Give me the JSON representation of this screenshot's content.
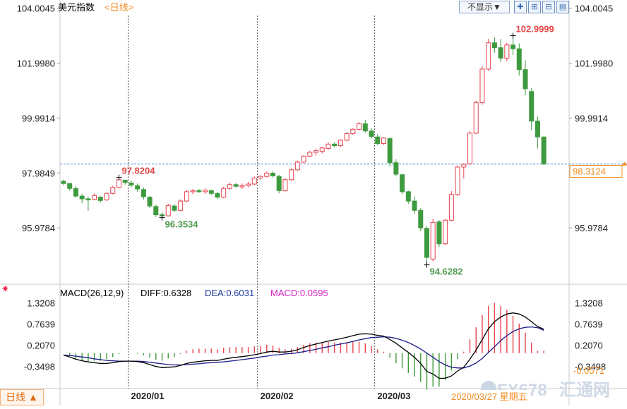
{
  "header": {
    "title": "美元指数",
    "period_link": "<日线>",
    "dropdown_label": "不显示▼",
    "tool_icons": [
      "crosshair-icon",
      "zoom-in-icon",
      "zoom-out-icon",
      "layout-icon"
    ]
  },
  "footer": {
    "period_button": "日线 ▲",
    "date_info": "2020/03/27 星期五",
    "watermark_brand": "FX678",
    "watermark_cn": "汇通网"
  },
  "colors": {
    "up": "#e8424d",
    "down": "#3e9a3e",
    "diff_line": "#000000",
    "dea_line": "#1c1c8c",
    "reference_line": "#3a7fd6",
    "current_label": "#f08c1e"
  },
  "chart_data": {
    "type": "candlestick",
    "symbol": "美元指数",
    "period": "日线",
    "price_axis": {
      "ylim": [
        94.0,
        104.2
      ],
      "ticks": [
        104.0045,
        101.998,
        99.9914,
        97.9849,
        95.9784
      ],
      "tick_labels": [
        "104.0045",
        "101.9980",
        "99.9914",
        "97.9849",
        "95.9784"
      ]
    },
    "x_labels": [
      {
        "index": 11,
        "label": "2020/01"
      },
      {
        "index": 32,
        "label": "2020/02"
      },
      {
        "index": 51,
        "label": "2020/03"
      }
    ],
    "annotations": {
      "high": {
        "index": 73,
        "value": 102.9999,
        "label": "102.9999"
      },
      "low": {
        "index": 59,
        "value": 94.6282,
        "label": "94.6282"
      },
      "local_high": {
        "index": 9,
        "value": 97.8204,
        "label": "97.8204"
      },
      "local_low": {
        "index": 16,
        "value": 96.3534,
        "label": "96.3534"
      },
      "current_price": {
        "value": 98.3124,
        "label": "98.3124"
      }
    },
    "candles": [
      [
        97.68,
        97.74,
        97.54,
        97.6
      ],
      [
        97.6,
        97.62,
        97.34,
        97.42
      ],
      [
        97.42,
        97.5,
        97.08,
        97.14
      ],
      [
        97.14,
        97.22,
        96.88,
        97.04
      ],
      [
        97.04,
        97.12,
        96.6,
        97.0
      ],
      [
        97.02,
        97.24,
        96.98,
        97.16
      ],
      [
        97.1,
        97.14,
        96.9,
        96.98
      ],
      [
        97.0,
        97.28,
        96.96,
        97.24
      ],
      [
        97.24,
        97.52,
        97.2,
        97.46
      ],
      [
        97.46,
        97.82,
        97.42,
        97.74
      ],
      [
        97.72,
        97.74,
        97.56,
        97.64
      ],
      [
        97.62,
        97.7,
        97.46,
        97.54
      ],
      [
        97.52,
        97.6,
        97.3,
        97.4
      ],
      [
        97.38,
        97.46,
        97.02,
        97.12
      ],
      [
        97.1,
        97.14,
        96.7,
        96.78
      ],
      [
        96.76,
        96.82,
        96.38,
        96.46
      ],
      [
        96.46,
        96.56,
        96.35,
        96.42
      ],
      [
        96.42,
        96.86,
        96.4,
        96.8
      ],
      [
        96.78,
        96.84,
        96.56,
        96.62
      ],
      [
        96.62,
        97.02,
        96.58,
        96.96
      ],
      [
        96.96,
        97.36,
        96.92,
        97.3
      ],
      [
        97.3,
        97.4,
        97.22,
        97.34
      ],
      [
        97.34,
        97.4,
        97.26,
        97.3
      ],
      [
        97.3,
        97.42,
        97.22,
        97.36
      ],
      [
        97.34,
        97.38,
        97.18,
        97.24
      ],
      [
        97.24,
        97.28,
        97.04,
        97.1
      ],
      [
        97.1,
        97.48,
        97.06,
        97.42
      ],
      [
        97.42,
        97.64,
        97.38,
        97.56
      ],
      [
        97.56,
        97.62,
        97.44,
        97.5
      ],
      [
        97.48,
        97.6,
        97.4,
        97.52
      ],
      [
        97.52,
        97.66,
        97.46,
        97.58
      ],
      [
        97.58,
        97.86,
        97.54,
        97.8
      ],
      [
        97.8,
        97.9,
        97.72,
        97.86
      ],
      [
        97.86,
        98.04,
        97.82,
        97.98
      ],
      [
        97.98,
        98.04,
        97.82,
        97.88
      ],
      [
        97.86,
        97.92,
        97.24,
        97.34
      ],
      [
        97.34,
        97.8,
        97.3,
        97.74
      ],
      [
        97.74,
        98.16,
        97.7,
        98.1
      ],
      [
        98.1,
        98.44,
        98.06,
        98.38
      ],
      [
        98.38,
        98.64,
        98.34,
        98.6
      ],
      [
        98.6,
        98.8,
        98.56,
        98.74
      ],
      [
        98.74,
        98.88,
        98.62,
        98.8
      ],
      [
        98.78,
        98.94,
        98.7,
        98.9
      ],
      [
        98.88,
        99.1,
        98.84,
        99.04
      ],
      [
        99.04,
        99.1,
        98.92,
        98.98
      ],
      [
        98.98,
        99.22,
        98.94,
        99.18
      ],
      [
        99.18,
        99.48,
        99.14,
        99.42
      ],
      [
        99.42,
        99.62,
        99.38,
        99.58
      ],
      [
        99.58,
        99.84,
        99.54,
        99.78
      ],
      [
        99.78,
        99.92,
        99.46,
        99.52
      ],
      [
        99.52,
        99.62,
        99.24,
        99.32
      ],
      [
        99.3,
        99.4,
        99.0,
        99.06
      ],
      [
        99.06,
        99.3,
        99.02,
        99.26
      ],
      [
        99.24,
        99.28,
        98.22,
        98.36
      ],
      [
        98.36,
        98.48,
        97.86,
        97.94
      ],
      [
        97.92,
        97.96,
        97.22,
        97.3
      ],
      [
        97.3,
        97.34,
        96.86,
        96.96
      ],
      [
        96.96,
        97.12,
        96.48,
        96.62
      ],
      [
        96.62,
        96.7,
        95.86,
        95.98
      ],
      [
        95.96,
        96.04,
        94.7,
        94.9
      ],
      [
        94.84,
        96.3,
        94.76,
        96.18
      ],
      [
        96.2,
        96.26,
        95.28,
        95.4
      ],
      [
        95.4,
        96.3,
        95.34,
        96.26
      ],
      [
        96.26,
        97.32,
        96.22,
        97.2
      ],
      [
        97.2,
        98.26,
        97.14,
        98.2
      ],
      [
        98.2,
        98.34,
        97.78,
        98.3
      ],
      [
        98.32,
        99.52,
        98.28,
        99.44
      ],
      [
        99.44,
        100.62,
        99.4,
        100.56
      ],
      [
        100.56,
        101.88,
        100.48,
        101.78
      ],
      [
        101.78,
        102.88,
        101.72,
        102.74
      ],
      [
        102.74,
        102.94,
        102.38,
        102.56
      ],
      [
        102.56,
        102.88,
        102.04,
        102.18
      ],
      [
        102.18,
        102.74,
        102.06,
        102.66
      ],
      [
        102.66,
        102.98,
        102.3,
        102.52
      ],
      [
        102.52,
        102.72,
        101.54,
        101.76
      ],
      [
        101.76,
        102.1,
        100.82,
        101.06
      ],
      [
        100.96,
        101.08,
        99.54,
        99.88
      ],
      [
        99.88,
        100.04,
        98.88,
        99.3
      ],
      [
        99.3,
        99.32,
        98.28,
        98.31
      ]
    ],
    "macd": {
      "params": "MACD(26,12,9)",
      "diff_label": "DIFF:0.6328",
      "dea_label": "DEA:0.6031",
      "macd_label": "MACD:0.0595",
      "ylim": [
        -0.95,
        1.5
      ],
      "ticks": [
        1.3208,
        0.7639,
        0.207,
        -0.3498
      ],
      "tick_labels": [
        "1.3208",
        "0.7639",
        "0.2070",
        "-0.3498"
      ],
      "right_value_label": "-0.0571",
      "diff": [
        -0.05,
        -0.1,
        -0.16,
        -0.2,
        -0.23,
        -0.25,
        -0.27,
        -0.27,
        -0.25,
        -0.22,
        -0.21,
        -0.21,
        -0.22,
        -0.25,
        -0.3,
        -0.35,
        -0.38,
        -0.37,
        -0.36,
        -0.32,
        -0.27,
        -0.24,
        -0.22,
        -0.2,
        -0.19,
        -0.19,
        -0.16,
        -0.13,
        -0.11,
        -0.09,
        -0.07,
        -0.04,
        -0.01,
        0.03,
        0.05,
        0.03,
        0.03,
        0.05,
        0.09,
        0.15,
        0.2,
        0.24,
        0.28,
        0.32,
        0.35,
        0.38,
        0.42,
        0.46,
        0.5,
        0.51,
        0.5,
        0.47,
        0.45,
        0.36,
        0.26,
        0.14,
        0.02,
        -0.11,
        -0.27,
        -0.48,
        -0.55,
        -0.66,
        -0.66,
        -0.6,
        -0.47,
        -0.37,
        -0.16,
        0.08,
        0.36,
        0.64,
        0.83,
        0.95,
        1.03,
        1.06,
        1.03,
        0.95,
        0.83,
        0.7,
        0.63
      ],
      "dea": [
        -0.05,
        -0.06,
        -0.08,
        -0.1,
        -0.12,
        -0.15,
        -0.17,
        -0.19,
        -0.2,
        -0.21,
        -0.21,
        -0.21,
        -0.21,
        -0.22,
        -0.24,
        -0.26,
        -0.28,
        -0.3,
        -0.31,
        -0.31,
        -0.3,
        -0.29,
        -0.28,
        -0.26,
        -0.25,
        -0.24,
        -0.23,
        -0.21,
        -0.19,
        -0.17,
        -0.15,
        -0.13,
        -0.1,
        -0.08,
        -0.05,
        -0.04,
        -0.02,
        -0.01,
        0.01,
        0.04,
        0.07,
        0.1,
        0.14,
        0.17,
        0.21,
        0.24,
        0.27,
        0.31,
        0.35,
        0.38,
        0.41,
        0.42,
        0.43,
        0.42,
        0.39,
        0.34,
        0.28,
        0.2,
        0.11,
        0.0,
        -0.11,
        -0.22,
        -0.31,
        -0.37,
        -0.39,
        -0.39,
        -0.34,
        -0.26,
        -0.14,
        0.02,
        0.17,
        0.33,
        0.46,
        0.57,
        0.64,
        0.68,
        0.69,
        0.67,
        0.6
      ]
    }
  }
}
